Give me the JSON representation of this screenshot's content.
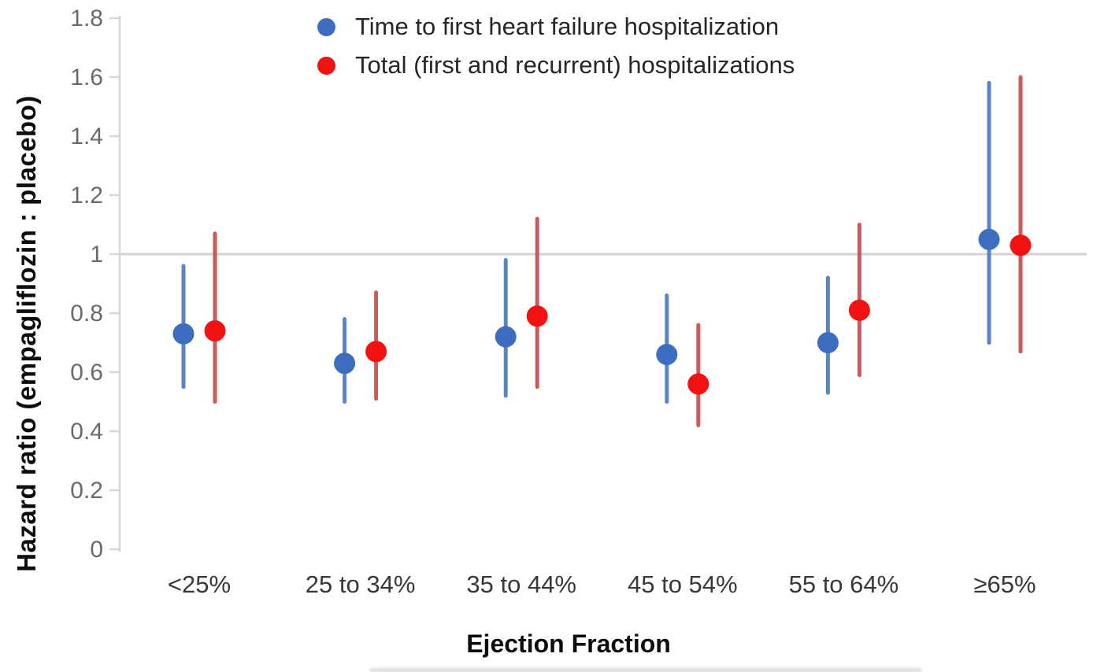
{
  "chart_data": {
    "type": "scatter",
    "variant": "forest-plot: hazard-ratio point estimates with 95% CI whiskers",
    "title": "",
    "xlabel": "Ejection Fraction",
    "ylabel": "Hazard ratio (empagliflozin : placebo)",
    "categories": [
      "<25%",
      "25 to 34%",
      "35 to 44%",
      "45 to 54%",
      "55 to 64%",
      "≥65%"
    ],
    "ylim": [
      0,
      1.8
    ],
    "y_ticks": [
      0,
      0.2,
      0.4,
      0.6,
      0.8,
      1,
      1.2,
      1.4,
      1.6,
      1.8
    ],
    "y_tick_labels": [
      "0",
      "0.2",
      "0.4",
      "0.6",
      "0.8",
      "1",
      "1.2",
      "1.4",
      "1.6",
      "1.8"
    ],
    "reference_line_y": 1,
    "grid": "off",
    "legend_position": "top-center-inside",
    "series": [
      {
        "name": "Time to first heart failure hospitalization",
        "marker_color": "#3d6dbe",
        "line_color": "#4d79be",
        "points": [
          {
            "category": "<25%",
            "hr": 0.73,
            "ci_low": 0.55,
            "ci_high": 0.96
          },
          {
            "category": "25 to 34%",
            "hr": 0.63,
            "ci_low": 0.5,
            "ci_high": 0.78
          },
          {
            "category": "35 to 44%",
            "hr": 0.72,
            "ci_low": 0.52,
            "ci_high": 0.98
          },
          {
            "category": "45 to 54%",
            "hr": 0.66,
            "ci_low": 0.5,
            "ci_high": 0.86
          },
          {
            "category": "55 to 64%",
            "hr": 0.7,
            "ci_low": 0.53,
            "ci_high": 0.92
          },
          {
            "category": "≥65%",
            "hr": 1.05,
            "ci_low": 0.7,
            "ci_high": 1.58
          }
        ]
      },
      {
        "name": "Total (first and recurrent) hospitalizations",
        "marker_color": "#f31111",
        "line_color": "#c0504d",
        "points": [
          {
            "category": "<25%",
            "hr": 0.74,
            "ci_low": 0.5,
            "ci_high": 1.07
          },
          {
            "category": "25 to 34%",
            "hr": 0.67,
            "ci_low": 0.51,
            "ci_high": 0.87
          },
          {
            "category": "35 to 44%",
            "hr": 0.79,
            "ci_low": 0.55,
            "ci_high": 1.12
          },
          {
            "category": "45 to 54%",
            "hr": 0.56,
            "ci_low": 0.42,
            "ci_high": 0.76
          },
          {
            "category": "55 to 64%",
            "hr": 0.81,
            "ci_low": 0.59,
            "ci_high": 1.1
          },
          {
            "category": "≥65%",
            "hr": 1.03,
            "ci_low": 0.67,
            "ci_high": 1.6
          }
        ]
      }
    ]
  },
  "colors": {
    "axis": "#d6d6d6",
    "reference_line": "#d2d2d2",
    "tick_label": "#6a6a6a",
    "category_label": "#3a3a3a",
    "title_text": "#0d0d0d",
    "legend_text": "#262626",
    "background": "#ffffff"
  }
}
